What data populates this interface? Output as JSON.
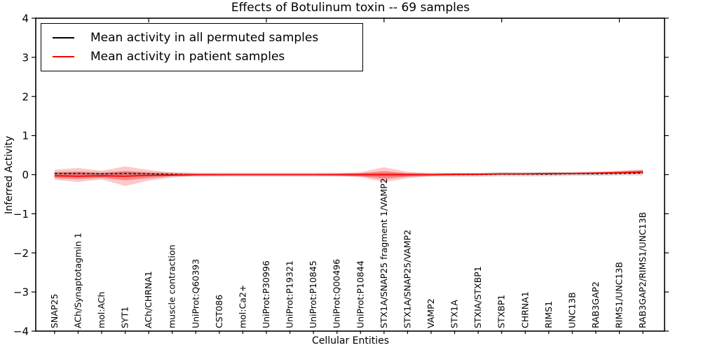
{
  "chart_data": {
    "type": "line",
    "title": "Effects of Botulinum toxin -- 69 samples",
    "xlabel": "Cellular Entities",
    "ylabel": "Inferred Activity",
    "ylim": [
      -4,
      4
    ],
    "xlim": [
      0.2,
      26.92
    ],
    "ytick_values": [
      4,
      3,
      2,
      1,
      0,
      -1,
      -2,
      -3,
      -4
    ],
    "ytick_labels": [
      "4",
      "3",
      "2",
      "1",
      "0",
      "−1",
      "−2",
      "−3",
      "−4"
    ],
    "top_tick_positions": [
      5,
      10,
      15,
      20,
      25
    ],
    "grid": false,
    "legend_position": "upper left",
    "categories": [
      "SNAP25",
      "ACh/Synaptotagmin 1",
      "mol:ACh",
      "SYT1",
      "ACh/CHRNA1",
      "muscle contraction",
      "UniProt:Q60393",
      "CST086",
      "mol:Ca2+",
      "UniProt:P30996",
      "UniProt:P19321",
      "UniProt:P10845",
      "UniProt:Q00496",
      "UniProt:P10844",
      "STX1A/SNAP25 fragment 1/VAMP2",
      "STX1A/SNAP25/VAMP2",
      "VAMP2",
      "STX1A",
      "STXIA/STXBP1",
      "STXBP1",
      "CHRNA1",
      "RIMS1",
      "UNC13B",
      "RAB3GAP2",
      "RIMS1/UNC13B",
      "RAB3GAP2/RIMS1/UNC13B"
    ],
    "legend": [
      {
        "label": "Mean activity in all permuted samples",
        "color": "#000000"
      },
      {
        "label": "Mean activity in patient samples",
        "color": "#ff0000"
      }
    ],
    "series": [
      {
        "name": "Mean activity in all permuted samples",
        "color": "#000000",
        "dashed": true,
        "width": 1.3,
        "values": [
          0.03,
          0.03,
          0.02,
          0.03,
          0.02,
          0.01,
          0.0,
          0.0,
          0.0,
          0.0,
          0.0,
          0.0,
          0.0,
          0.0,
          0.0,
          0.0,
          0.0,
          0.0,
          0.0,
          0.01,
          0.01,
          0.01,
          0.02,
          0.02,
          0.03,
          0.04
        ]
      },
      {
        "name": "Mean activity in patient samples",
        "color": "#ff0000",
        "dashed": false,
        "width": 1.8,
        "values": [
          -0.03,
          -0.04,
          -0.03,
          -0.04,
          -0.02,
          -0.01,
          0.0,
          0.0,
          0.0,
          0.0,
          0.0,
          0.0,
          0.0,
          0.0,
          0.0,
          0.0,
          0.0,
          0.01,
          0.01,
          0.02,
          0.02,
          0.03,
          0.03,
          0.04,
          0.05,
          0.07
        ]
      }
    ],
    "bands": [
      {
        "name": "permuted-std-band",
        "color": "#999999",
        "opacity": 0.4,
        "top": [
          0.08,
          0.08,
          0.07,
          0.08,
          0.07,
          0.06,
          0.05,
          0.05,
          0.05,
          0.05,
          0.05,
          0.05,
          0.05,
          0.05,
          0.05,
          0.05,
          0.05,
          0.05,
          0.05,
          0.06,
          0.06,
          0.06,
          0.07,
          0.08,
          0.09,
          0.11
        ],
        "bottom": [
          -0.02,
          -0.02,
          -0.03,
          -0.02,
          -0.03,
          -0.04,
          -0.05,
          -0.05,
          -0.05,
          -0.05,
          -0.05,
          -0.05,
          -0.05,
          -0.05,
          -0.05,
          -0.05,
          -0.05,
          -0.05,
          -0.05,
          -0.04,
          -0.04,
          -0.04,
          -0.03,
          -0.03,
          -0.02,
          -0.02
        ]
      },
      {
        "name": "patient-outer-band",
        "color": "#ff3333",
        "opacity": 0.27,
        "top": [
          0.13,
          0.17,
          0.1,
          0.21,
          0.12,
          0.05,
          0.03,
          0.02,
          0.02,
          0.02,
          0.02,
          0.02,
          0.03,
          0.06,
          0.19,
          0.07,
          0.03,
          0.03,
          0.03,
          0.04,
          0.04,
          0.05,
          0.05,
          0.06,
          0.1,
          0.14
        ],
        "bottom": [
          -0.13,
          -0.19,
          -0.12,
          -0.29,
          -0.15,
          -0.07,
          -0.04,
          -0.03,
          -0.02,
          -0.02,
          -0.02,
          -0.02,
          -0.03,
          -0.06,
          -0.19,
          -0.09,
          -0.04,
          -0.02,
          -0.01,
          0.0,
          0.0,
          0.01,
          0.01,
          0.02,
          0.02,
          0.03
        ]
      },
      {
        "name": "patient-inner-band",
        "color": "#ee2222",
        "opacity": 0.38,
        "top": [
          0.05,
          0.07,
          0.04,
          0.09,
          0.05,
          0.02,
          0.015,
          0.01,
          0.01,
          0.01,
          0.01,
          0.01,
          0.015,
          0.03,
          0.09,
          0.03,
          0.015,
          0.02,
          0.02,
          0.03,
          0.03,
          0.04,
          0.04,
          0.05,
          0.07,
          0.1
        ],
        "bottom": [
          -0.09,
          -0.11,
          -0.08,
          -0.14,
          -0.09,
          -0.04,
          -0.02,
          -0.015,
          -0.01,
          -0.01,
          -0.01,
          -0.01,
          -0.02,
          -0.04,
          -0.11,
          -0.05,
          -0.02,
          -0.01,
          0.0,
          0.01,
          0.01,
          0.02,
          0.02,
          0.03,
          0.03,
          0.04
        ]
      }
    ],
    "axis_color": "#000000"
  }
}
